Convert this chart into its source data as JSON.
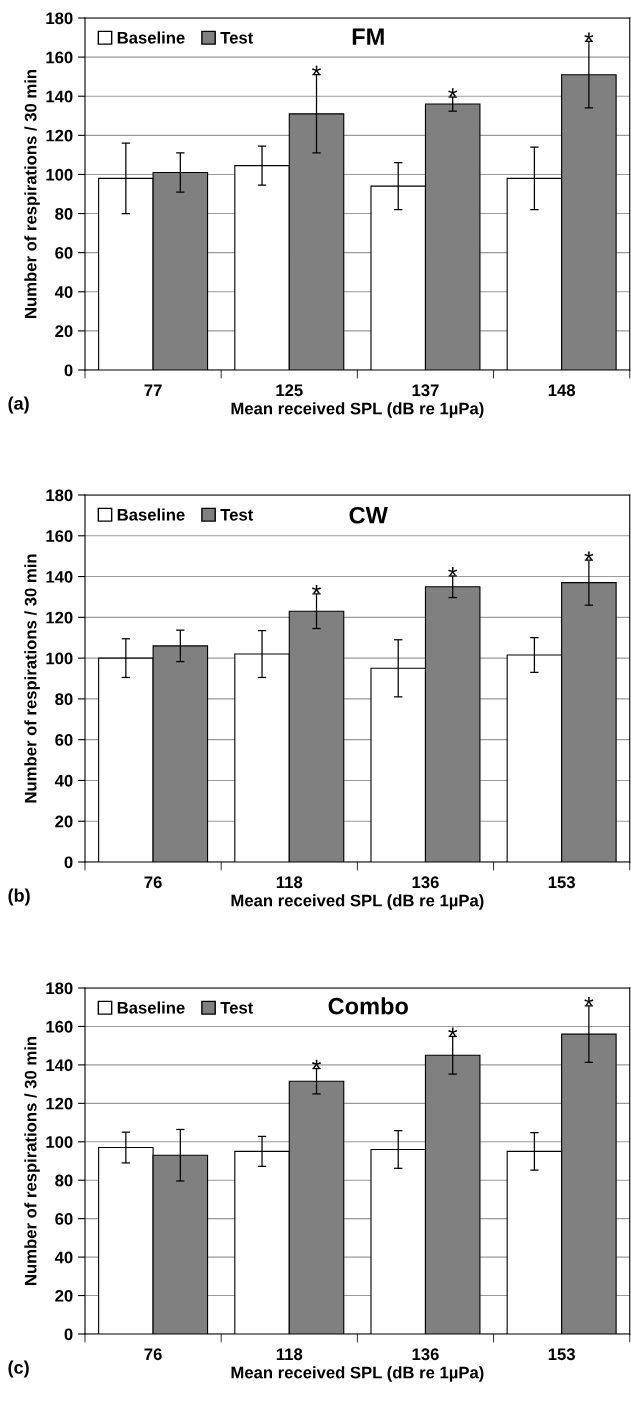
{
  "chart_data": [
    {
      "type": "bar",
      "title": "FM",
      "xlabel": "Mean received SPL (dB re 1µPa)",
      "ylabel": "Number of respirations / 30 min",
      "categories": [
        "77",
        "125",
        "137",
        "148"
      ],
      "series": [
        {
          "name": "Baseline",
          "color": "#ffffff",
          "values": [
            98,
            104.5,
            94,
            98
          ],
          "errors": [
            18,
            10,
            12,
            16
          ]
        },
        {
          "name": "Test",
          "color": "#808080",
          "values": [
            101,
            131,
            136,
            151
          ],
          "errors": [
            10,
            20,
            3.6,
            17
          ]
        }
      ],
      "ylim": [
        0,
        180
      ],
      "yticks": [
        0,
        20,
        40,
        60,
        80,
        100,
        120,
        140,
        160,
        180
      ],
      "grid": "y",
      "legend": "top left",
      "annotations": [
        "*",
        "*",
        "*",
        "(a)"
      ]
    },
    {
      "type": "bar",
      "title": "CW",
      "xlabel": "Mean received SPL (dB re 1µPa)",
      "ylabel": "Number of respirations / 30 min",
      "categories": [
        "76",
        "118",
        "136",
        "153"
      ],
      "series": [
        {
          "name": "Baseline",
          "color": "#ffffff",
          "values": [
            100,
            102,
            95,
            101.5
          ],
          "errors": [
            9.5,
            11.5,
            14,
            8.5
          ]
        },
        {
          "name": "Test",
          "color": "#808080",
          "values": [
            106,
            123,
            135,
            137
          ],
          "errors": [
            7.7,
            8.5,
            5.3,
            11
          ]
        }
      ],
      "ylim": [
        0,
        180
      ],
      "yticks": [
        0,
        20,
        40,
        60,
        80,
        100,
        120,
        140,
        160,
        180
      ],
      "grid": "y",
      "legend": "top left",
      "annotations": [
        "*",
        "*",
        "*",
        "(b)"
      ]
    },
    {
      "type": "bar",
      "title": "Combo",
      "xlabel": "Mean received SPL (dB re 1µPa)",
      "ylabel": "Number of respirations / 30 min",
      "categories": [
        "76",
        "118",
        "136",
        "153"
      ],
      "series": [
        {
          "name": "Baseline",
          "color": "#ffffff",
          "values": [
            97,
            95,
            96,
            95
          ],
          "errors": [
            8,
            7.8,
            9.8,
            9.8
          ]
        },
        {
          "name": "Test",
          "color": "#808080",
          "values": [
            93,
            131.5,
            145,
            156
          ],
          "errors": [
            13.4,
            6.6,
            9.8,
            14.7
          ]
        }
      ],
      "ylim": [
        0,
        180
      ],
      "yticks": [
        0,
        20,
        40,
        60,
        80,
        100,
        120,
        140,
        160,
        180
      ],
      "grid": "y",
      "legend": "top left",
      "annotations": [
        "*",
        "*",
        "*",
        "(c)"
      ]
    }
  ]
}
